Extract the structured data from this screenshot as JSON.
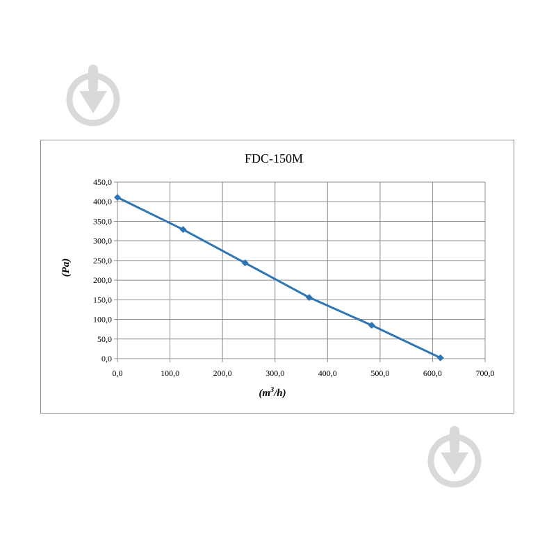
{
  "watermark": {
    "icon": "download-drop-icon",
    "color": "#d9d9d9"
  },
  "chart_data": {
    "type": "line",
    "title": "FDC-150M",
    "xlabel": "(m3/h)",
    "xlabel_parts": {
      "main": "(m",
      "sup": "3",
      "tail": "/h)"
    },
    "ylabel": "(Pa)",
    "xlim": [
      0,
      700
    ],
    "ylim": [
      0,
      450
    ],
    "x_ticks": [
      "0,0",
      "100,0",
      "200,0",
      "300,0",
      "400,0",
      "500,0",
      "600,0",
      "700,0"
    ],
    "x_tick_values": [
      0,
      100,
      200,
      300,
      400,
      500,
      600,
      700
    ],
    "y_ticks": [
      "0,0",
      "50,0",
      "100,0",
      "150,0",
      "200,0",
      "250,0",
      "300,0",
      "350,0",
      "400,0",
      "450,0"
    ],
    "y_tick_values": [
      0,
      50,
      100,
      150,
      200,
      250,
      300,
      350,
      400,
      450
    ],
    "grid": true,
    "legend": "none",
    "series": [
      {
        "color": "#2e75b6",
        "marker": "diamond",
        "x": [
          0,
          125,
          243,
          365,
          484,
          615
        ],
        "y": [
          411,
          329,
          244,
          156,
          85,
          2
        ]
      }
    ]
  }
}
